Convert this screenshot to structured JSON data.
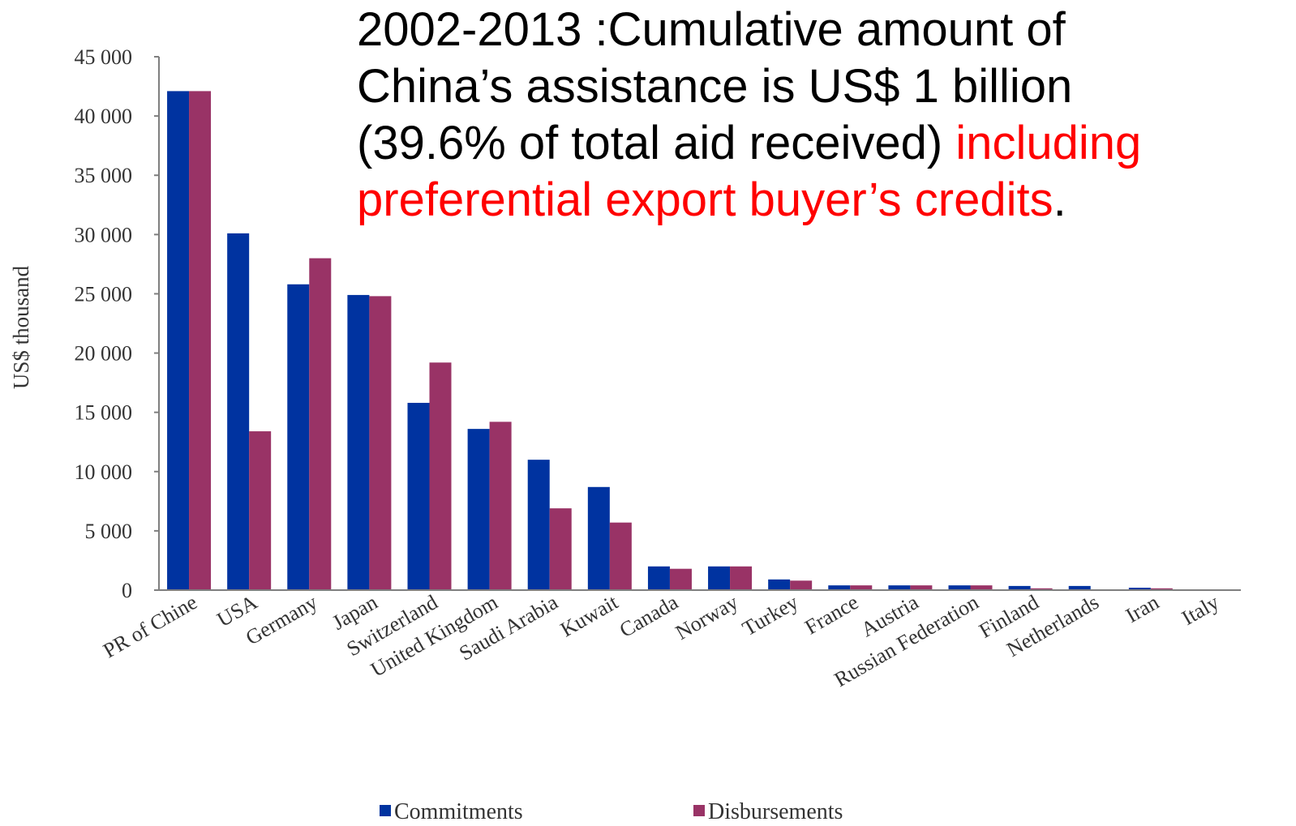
{
  "headline": {
    "line1": "2002-2013 :Cumulative amount of",
    "line2": "China’s assistance is US$ 1 billion",
    "line3_black": "(39.6% of total aid received) ",
    "line3_red": "including",
    "line4_red": "preferential export buyer’s credits",
    "line4_end": "."
  },
  "colors": {
    "commitments": "#0033a0",
    "disbursements": "#993366",
    "axis": "#7f7f7f",
    "highlight": "#ff0000"
  },
  "chart_data": {
    "type": "bar",
    "ylabel": "US$ thousand",
    "ylim": [
      0,
      45000
    ],
    "yticks": [
      0,
      5000,
      10000,
      15000,
      20000,
      25000,
      30000,
      35000,
      40000,
      45000
    ],
    "ytick_labels": [
      "0",
      "5 000",
      "10 000",
      "15 000",
      "20 000",
      "25 000",
      "30 000",
      "35 000",
      "40 000",
      "45 000"
    ],
    "categories": [
      "PR of Chine",
      "USA",
      "Germany",
      "Japan",
      "Switzerland",
      "United Kingdom",
      "Saudi Arabia",
      "Kuwait",
      "Canada",
      "Norway",
      "Turkey",
      "France",
      "Austria",
      "Russian Federation",
      "Finland",
      "Netherlands",
      "Iran",
      "Italy"
    ],
    "series": [
      {
        "name": "Commitments",
        "values": [
          42100,
          30100,
          25800,
          24900,
          15800,
          13600,
          11000,
          8700,
          2000,
          2000,
          900,
          400,
          400,
          400,
          350,
          350,
          200,
          50
        ]
      },
      {
        "name": "Disbursements",
        "values": [
          42100,
          13400,
          28000,
          24800,
          19200,
          14200,
          6900,
          5700,
          1800,
          2000,
          800,
          400,
          400,
          400,
          150,
          50,
          150,
          50
        ]
      }
    ],
    "grid": false,
    "legend_position": "bottom"
  }
}
